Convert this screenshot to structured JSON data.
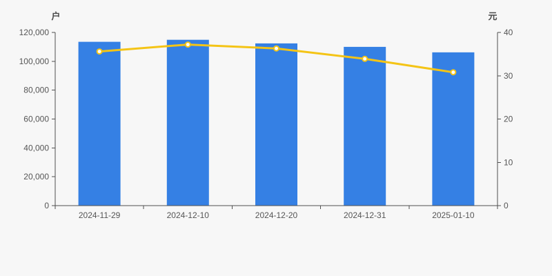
{
  "chart": {
    "colors": {
      "background": "#f7f7f7",
      "bar": "#3580e4",
      "line": "#f4c416",
      "dot_fill": "#ffffff",
      "axis": "#4f4f4f",
      "text": "#555555"
    }
  },
  "chart_data": {
    "type": "combo",
    "categories": [
      "2024-11-29",
      "2024-12-10",
      "2024-12-20",
      "2024-12-31",
      "2025-01-10"
    ],
    "series": [
      {
        "name": "户",
        "type": "bar",
        "axis": "left",
        "values": [
          113500,
          114900,
          112400,
          110000,
          106200
        ]
      },
      {
        "name": "元",
        "type": "line",
        "axis": "right",
        "values": [
          35.6,
          37.2,
          36.3,
          33.9,
          30.8
        ]
      }
    ],
    "left_axis": {
      "name": "户",
      "min": 0,
      "max": 120000,
      "tick_labels": [
        "0",
        "20,000",
        "40,000",
        "60,000",
        "80,000",
        "100,000",
        "120,000"
      ]
    },
    "right_axis": {
      "name": "元",
      "min": 0,
      "max": 40,
      "tick_labels": [
        "0",
        "10",
        "20",
        "30",
        "40"
      ]
    },
    "grid": false,
    "legend": false,
    "title": ""
  }
}
